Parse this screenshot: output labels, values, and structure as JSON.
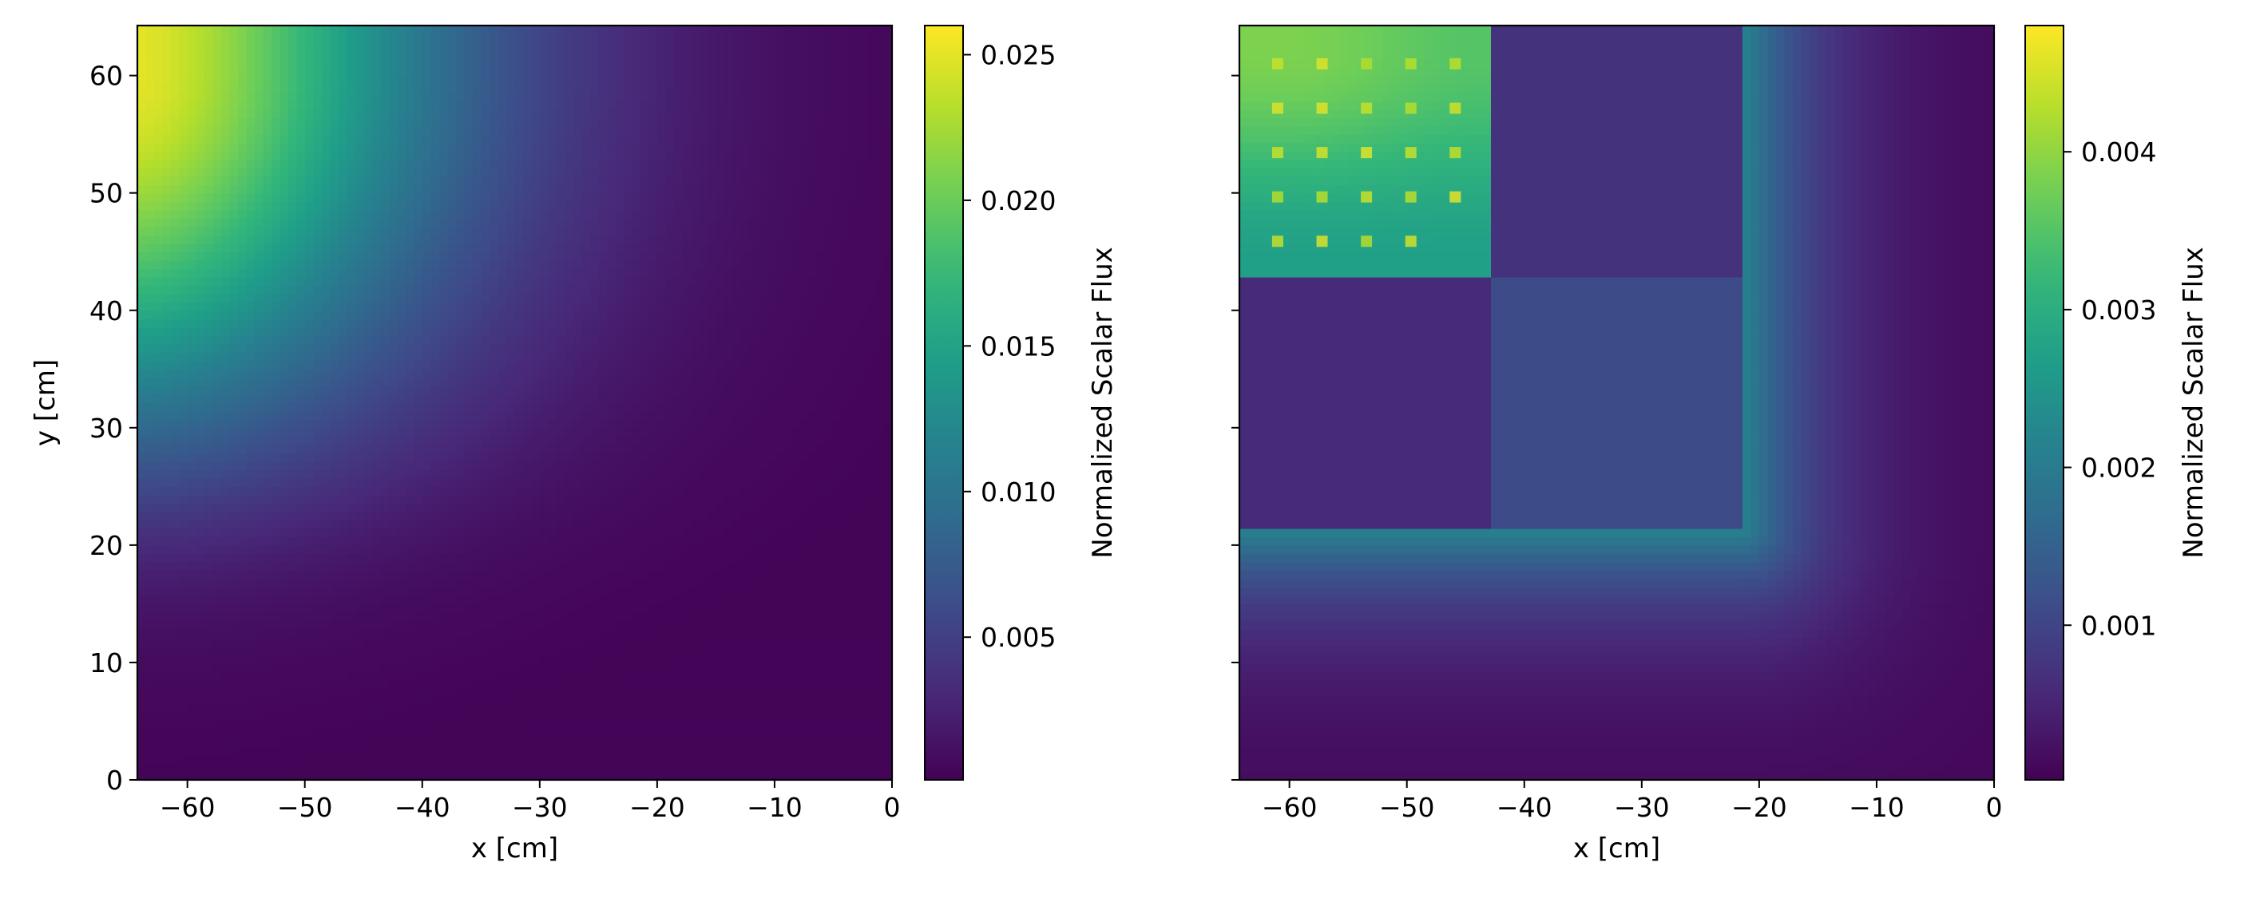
{
  "chart_data": [
    {
      "type": "heatmap",
      "title": "",
      "xlabel": "x [cm]",
      "ylabel": "y [cm]",
      "xlim": [
        -64.26,
        0
      ],
      "ylim": [
        0,
        64.26
      ],
      "x_ticks": [
        -60,
        -50,
        -40,
        -30,
        -20,
        -10,
        0
      ],
      "y_ticks": [
        0,
        10,
        20,
        30,
        40,
        50,
        60
      ],
      "colormap": "viridis",
      "colorbar": {
        "label": "Normalized Scalar Flux",
        "range": [
          0.0001,
          0.026
        ],
        "ticks": [
          0.005,
          0.01,
          0.015,
          0.02,
          0.025
        ],
        "tick_labels": [
          "0.005",
          "0.010",
          "0.015",
          "0.020",
          "0.025"
        ]
      },
      "field": {
        "description_of_regions": "Peak flux in upper-left fuel corner, decaying toward right and bottom",
        "peak_value": 0.025,
        "peak_region_x": [
          -64.26,
          -45
        ],
        "peak_region_y": [
          45,
          64.26
        ],
        "reflector_value": 0.0003
      }
    },
    {
      "type": "heatmap",
      "title": "",
      "xlabel": "x [cm]",
      "ylabel": "",
      "xlim": [
        -64.26,
        0
      ],
      "ylim": [
        0,
        64.26
      ],
      "x_ticks": [
        -60,
        -50,
        -40,
        -30,
        -20,
        -10,
        0
      ],
      "y_ticks": [
        0,
        10,
        20,
        30,
        40,
        50,
        60
      ],
      "colormap": "viridis",
      "colorbar": {
        "label": "Normalized Scalar Flux",
        "range": [
          2e-05,
          0.0048
        ],
        "ticks": [
          0.001,
          0.002,
          0.003,
          0.004
        ],
        "tick_labels": [
          "0.001",
          "0.002",
          "0.003",
          "0.004"
        ]
      },
      "field": {
        "assemblies": [
          {
            "x": [
              -64.26,
              -42.84
            ],
            "y": [
              42.84,
              64.26
            ],
            "value": 0.0032
          },
          {
            "x": [
              -42.84,
              -21.42
            ],
            "y": [
              42.84,
              64.26
            ],
            "value": 0.0007
          },
          {
            "x": [
              -64.26,
              -42.84
            ],
            "y": [
              21.42,
              42.84
            ],
            "value": 0.0006
          },
          {
            "x": [
              -42.84,
              -21.42
            ],
            "y": [
              21.42,
              42.84
            ],
            "value": 0.0011
          }
        ],
        "reflector_peak_value": 0.0022,
        "reflector_far_value": 0.0001,
        "pin_hotspot_value": 0.0046
      }
    }
  ]
}
